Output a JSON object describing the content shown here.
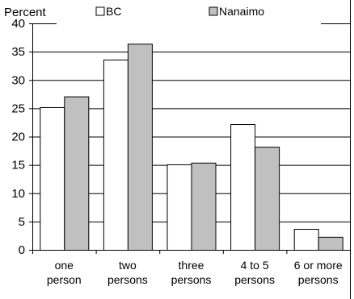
{
  "chart_data": {
    "type": "bar",
    "ylabel": "Percent",
    "ylim": [
      0,
      40
    ],
    "ytick_step": 5,
    "y_ticks": [
      "0",
      "5",
      "10",
      "15",
      "20",
      "25",
      "30",
      "35",
      "40"
    ],
    "grid": true,
    "legend_position": "top",
    "categories": [
      [
        "one",
        "person"
      ],
      [
        "two",
        "persons"
      ],
      [
        "three",
        "persons"
      ],
      [
        "4 to 5",
        "persons"
      ],
      [
        "6 or more",
        "persons"
      ]
    ],
    "series": [
      {
        "name": "BC",
        "color": "#ffffff",
        "values": [
          25.2,
          33.6,
          15.1,
          22.2,
          3.7
        ]
      },
      {
        "name": "Nanaimo",
        "color": "#c0c0c0",
        "values": [
          27.1,
          36.4,
          15.4,
          18.2,
          2.3
        ]
      }
    ]
  }
}
